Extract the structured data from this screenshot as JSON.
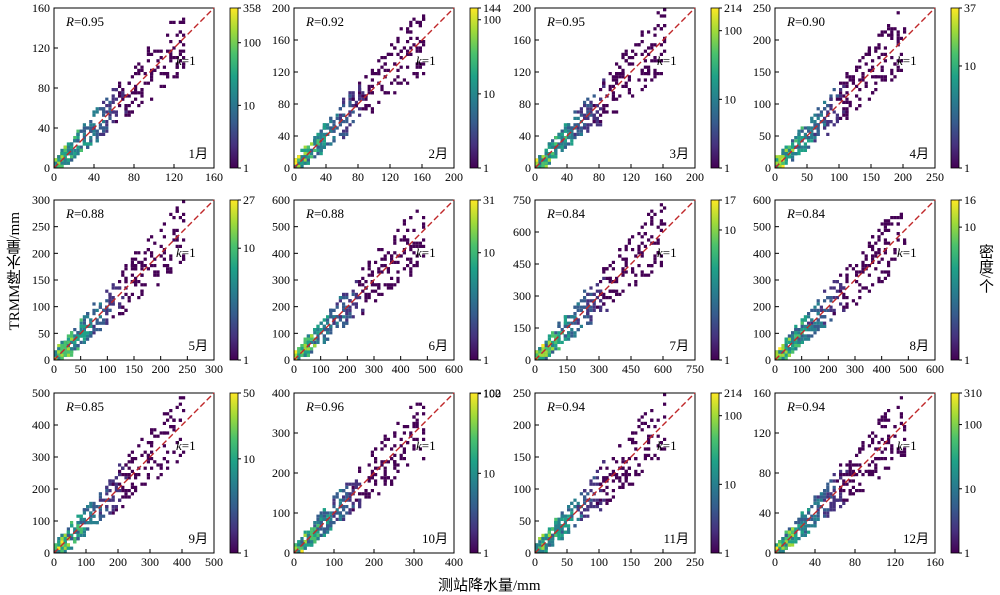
{
  "figure": {
    "xlabel": "测站降水量/mm",
    "ylabel": "TRMM降水量/mm",
    "cbar_label": "密度/个",
    "k_label": "=1"
  },
  "colors": {
    "ref_line": "#c0282a",
    "cmap": [
      "#440154",
      "#46327e",
      "#365c8d",
      "#277f8e",
      "#1fa187",
      "#4ac16d",
      "#a0da39",
      "#fde725"
    ]
  },
  "chart_data": [
    {
      "type": "heatmap",
      "month": "1月",
      "R": "0.95",
      "axis_max": 160,
      "ticks": [
        0,
        40,
        80,
        120,
        160
      ],
      "cbar_max": "358",
      "cbar_ticks": [
        "358",
        "100",
        "10",
        "1"
      ]
    },
    {
      "type": "heatmap",
      "month": "2月",
      "R": "0.92",
      "axis_max": 200,
      "ticks": [
        0,
        40,
        80,
        120,
        160,
        200
      ],
      "cbar_max": "144",
      "cbar_ticks": [
        "144",
        "100",
        "10",
        "1"
      ]
    },
    {
      "type": "heatmap",
      "month": "3月",
      "R": "0.95",
      "axis_max": 200,
      "ticks": [
        0,
        40,
        80,
        120,
        160,
        200
      ],
      "cbar_max": "214",
      "cbar_ticks": [
        "214",
        "100",
        "10",
        "1"
      ]
    },
    {
      "type": "heatmap",
      "month": "4月",
      "R": "0.90",
      "axis_max": 250,
      "ticks": [
        0,
        50,
        100,
        150,
        200,
        250
      ],
      "cbar_max": "37",
      "cbar_ticks": [
        "37",
        "10",
        "1"
      ]
    },
    {
      "type": "heatmap",
      "month": "5月",
      "R": "0.88",
      "axis_max": 300,
      "ticks": [
        0,
        50,
        100,
        150,
        200,
        250,
        300
      ],
      "cbar_max": "27",
      "cbar_ticks": [
        "27",
        "10",
        "1"
      ]
    },
    {
      "type": "heatmap",
      "month": "6月",
      "R": "0.88",
      "axis_max": 600,
      "ticks": [
        0,
        100,
        200,
        300,
        400,
        500,
        600
      ],
      "cbar_max": "31",
      "cbar_ticks": [
        "31",
        "10",
        "1"
      ]
    },
    {
      "type": "heatmap",
      "month": "7月",
      "R": "0.84",
      "axis_max": 750,
      "ticks": [
        0,
        150,
        300,
        450,
        600,
        750
      ],
      "cbar_max": "17",
      "cbar_ticks": [
        "17",
        "10",
        "1"
      ]
    },
    {
      "type": "heatmap",
      "month": "8月",
      "R": "0.84",
      "axis_max": 600,
      "ticks": [
        0,
        100,
        200,
        300,
        400,
        500,
        600
      ],
      "cbar_max": "16",
      "cbar_ticks": [
        "16",
        "10",
        "1"
      ]
    },
    {
      "type": "heatmap",
      "month": "9月",
      "R": "0.85",
      "axis_max": 500,
      "ticks": [
        0,
        100,
        200,
        300,
        400,
        500
      ],
      "cbar_max": "50",
      "cbar_ticks": [
        "50",
        "10",
        "1"
      ]
    },
    {
      "type": "heatmap",
      "month": "10月",
      "R": "0.96",
      "axis_max": 400,
      "ticks": [
        0,
        100,
        200,
        300,
        400
      ],
      "cbar_max": "102",
      "cbar_ticks": [
        "102",
        "100",
        "10",
        "1"
      ]
    },
    {
      "type": "heatmap",
      "month": "11月",
      "R": "0.94",
      "axis_max": 250,
      "ticks": [
        0,
        50,
        100,
        150,
        200,
        250
      ],
      "cbar_max": "214",
      "cbar_ticks": [
        "214",
        "100",
        "10",
        "1"
      ]
    },
    {
      "type": "heatmap",
      "month": "12月",
      "R": "0.94",
      "axis_max": 160,
      "ticks": [
        0,
        40,
        80,
        120,
        160
      ],
      "cbar_max": "310",
      "cbar_ticks": [
        "310",
        "100",
        "10",
        "1"
      ]
    }
  ]
}
